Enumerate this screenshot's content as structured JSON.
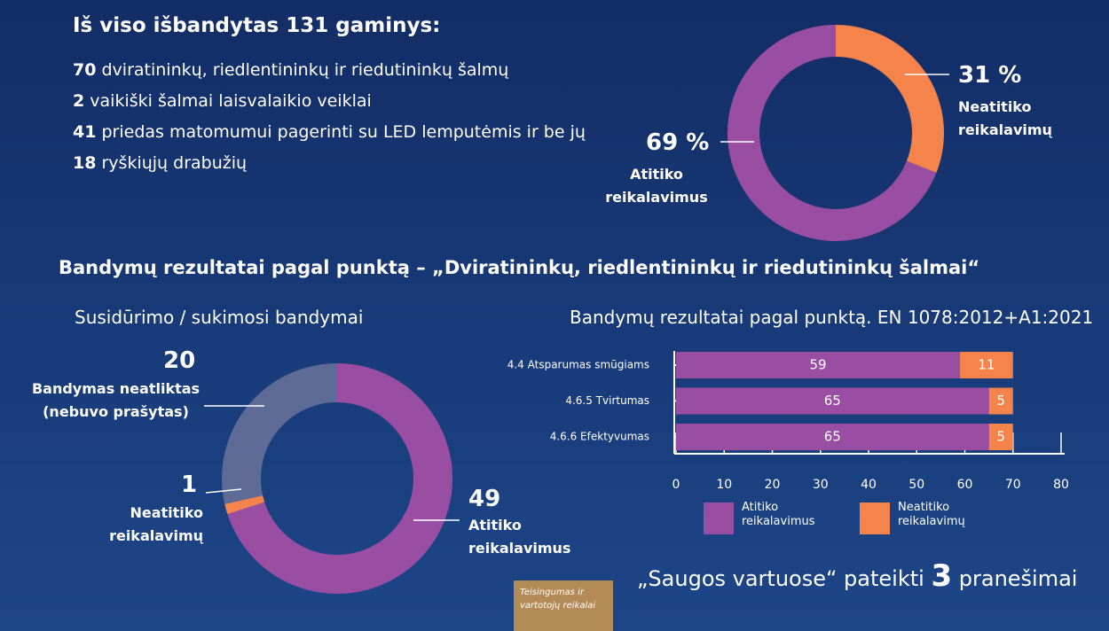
{
  "header": {
    "title": "Iš viso išbandytas 131 gaminys:",
    "items": [
      {
        "count": 70,
        "text": "dviratininkų, riedlentininkų ir riedutininkų šalmų"
      },
      {
        "count": 2,
        "text": "vaikiški šalmai laisvalaikio veiklai"
      },
      {
        "count": 41,
        "text": "priedas matomumui pagerinti su LED lemputėmis ir be jų"
      },
      {
        "count": 18,
        "text": "ryškiųjų drabužių"
      }
    ]
  },
  "section_title": "Bandymų rezultatai pagal punktą – „Dviratininkų, riedlentininkų ir riedutininkų šalmai“",
  "chart_data": [
    {
      "type": "donut",
      "categories": [
        "Neatitiko reikalavimų",
        "Atitiko reikalavimus"
      ],
      "values": [
        31,
        69
      ],
      "value_labels": [
        "31 %",
        "69 %"
      ],
      "colors": [
        "#f5844c",
        "#9a4ea3"
      ]
    },
    {
      "type": "donut",
      "title": "Susidūrimo / sukimosi bandymai",
      "categories": [
        "Atitiko reikalavimus",
        "Neatitiko reikalavimų",
        "Bandymas neatliktas (nebuvo prašytas)"
      ],
      "values": [
        49,
        1,
        20
      ],
      "colors": [
        "#9a4ea3",
        "#f5844c",
        "#5d6b96"
      ]
    },
    {
      "type": "bar",
      "title": "Bandymų rezultatai pagal punktą. EN 1078:2012+A1:2021",
      "categories": [
        "4.4 Atsparumas smūgiams",
        "4.6.5 Tvirtumas",
        "4.6.6 Efektyvumas"
      ],
      "series": [
        {
          "name": "Atitiko reikalavimus",
          "color": "#9a4ea3",
          "values": [
            59,
            65,
            65
          ]
        },
        {
          "name": "Neatitiko reikalavimų",
          "color": "#f5844c",
          "values": [
            11,
            5,
            5
          ]
        }
      ],
      "xlim": [
        0,
        80
      ],
      "xticks": [
        0,
        10,
        20,
        30,
        40,
        50,
        60,
        70,
        80
      ]
    }
  ],
  "footer": {
    "prefix": "„Saugos vartuose“ pateikti",
    "count": 3,
    "suffix": "pranešimai"
  },
  "badge": "Teisingumas ir vartotojų reikalai"
}
